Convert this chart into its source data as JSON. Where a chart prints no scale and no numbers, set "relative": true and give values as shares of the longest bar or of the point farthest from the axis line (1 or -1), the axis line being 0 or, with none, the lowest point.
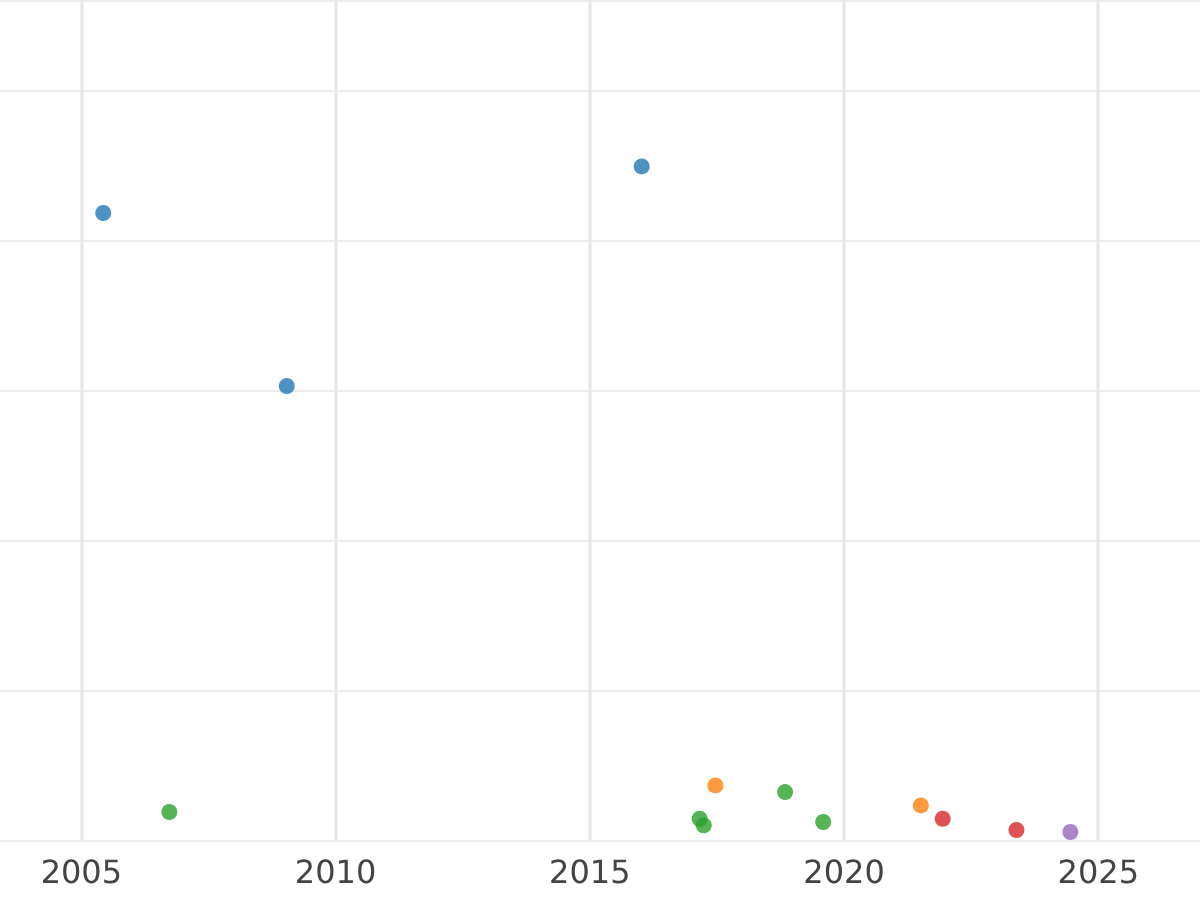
{
  "chart_data": {
    "type": "scatter",
    "relative": true,
    "xlim": [
      2003.4,
      2027
    ],
    "xticks": [
      2005,
      2010,
      2015,
      2020,
      2025
    ],
    "grid": true,
    "marker": "circle",
    "tick_labels": "x",
    "series": [
      {
        "color": "#1f77b4",
        "x": [
          2005.43,
          2009.04,
          2016.02
        ],
        "values": [
          0.93,
          0.67,
          1
        ]
      },
      {
        "color": "#2ca02c",
        "x": [
          2006.73,
          2017.16,
          2017.24,
          2018.84,
          2019.59
        ],
        "values": [
          0.03,
          0.02,
          0.01,
          0.06,
          0.015
        ]
      },
      {
        "color": "#ff7f0e",
        "x": [
          2017.47,
          2021.51
        ],
        "values": [
          0.07,
          0.04
        ]
      },
      {
        "color": "#d62728",
        "x": [
          2021.94,
          2023.39
        ],
        "values": [
          0.02,
          0.003
        ]
      },
      {
        "color": "#9467bd",
        "x": [
          2024.45
        ],
        "values": [
          0
        ]
      }
    ]
  }
}
